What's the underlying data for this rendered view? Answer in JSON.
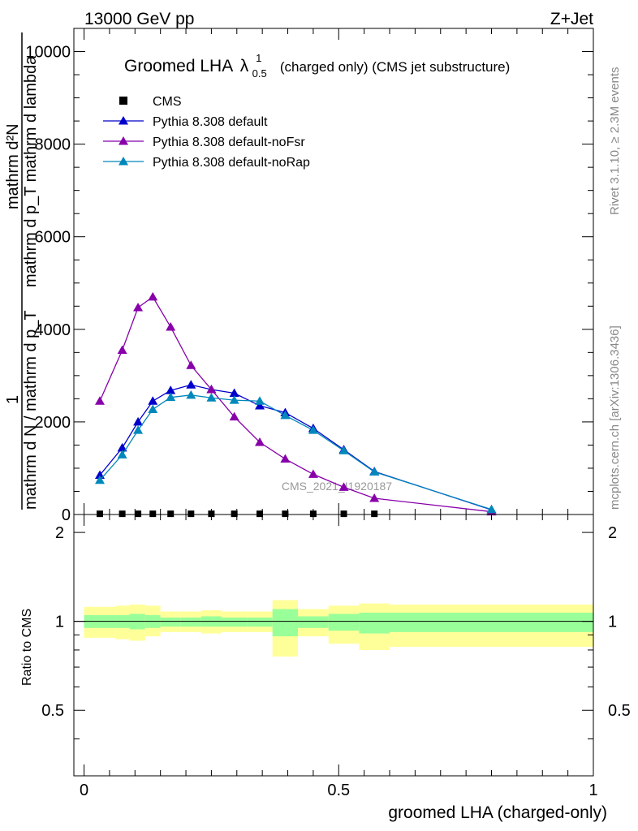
{
  "header": {
    "left": "13000 GeV pp",
    "right": "Z+Jet"
  },
  "side_labels": {
    "rivet": "Rivet 3.1.10, ≥ 2.3M events",
    "mcplots": "mcplots.cern.ch [arXiv:1306.3436]"
  },
  "watermark": "CMS_2021_I1920187",
  "chart_data": [
    {
      "type": "line",
      "title_main": "Groomed LHA",
      "title_lambda": "λ",
      "title_sub": "0.5",
      "title_sup": "1",
      "title_rest": "(charged only) (CMS jet substructure)",
      "ylabel_top": "mathrm d²N",
      "ylabel_mid": "mathrm d p_T mathrm d lambda",
      "ylabel_one": "1",
      "ylabel_bottom": "mathrm d N / mathrm d p_T",
      "ylim": [
        0,
        10500
      ],
      "xlim": [
        -0.02,
        1.0
      ],
      "yticks": [
        0,
        2000,
        4000,
        6000,
        8000,
        10000
      ],
      "ytick_labels": [
        "0",
        "2000",
        "4000",
        "6000",
        "8000",
        "10000"
      ],
      "x": [
        0.031,
        0.075,
        0.106,
        0.135,
        0.17,
        0.21,
        0.25,
        0.295,
        0.345,
        0.395,
        0.45,
        0.51,
        0.57,
        0.8
      ],
      "cms_x": [
        0.031,
        0.075,
        0.106,
        0.135,
        0.17,
        0.21,
        0.25,
        0.295,
        0.345,
        0.395,
        0.45,
        0.51,
        0.57
      ],
      "cms_values": [
        15,
        15,
        15,
        15,
        15,
        15,
        15,
        15,
        15,
        15,
        15,
        15,
        15
      ],
      "series": [
        {
          "name": "CMS",
          "color": "#000000",
          "marker": "square"
        },
        {
          "name": "Pythia 8.308 default",
          "color": "#0000cc",
          "marker": "triangle",
          "values": [
            850,
            1440,
            2000,
            2450,
            2680,
            2800,
            2700,
            2620,
            2350,
            2200,
            1860,
            1400,
            930,
            100
          ]
        },
        {
          "name": "Pythia 8.308 default-noFsr",
          "color": "#8800aa",
          "marker": "triangle",
          "values": [
            2450,
            3550,
            4470,
            4700,
            4050,
            3220,
            2700,
            2110,
            1560,
            1200,
            870,
            590,
            350,
            60
          ]
        },
        {
          "name": "Pythia 8.308 default-noRap",
          "color": "#0088bb",
          "marker": "triangle",
          "values": [
            740,
            1290,
            1820,
            2270,
            2530,
            2580,
            2520,
            2470,
            2450,
            2140,
            1820,
            1380,
            920,
            110
          ]
        }
      ],
      "legend_position": "top-left"
    },
    {
      "type": "area",
      "ylabel": "Ratio to CMS",
      "xlabel": "groomed LHA (charged-only)",
      "ylim": [
        0.3,
        2.3
      ],
      "yticks": [
        0.5,
        1,
        2
      ],
      "ytick_labels": [
        "0.5",
        "1",
        "2"
      ],
      "xticks": [
        0,
        0.5,
        1
      ],
      "xtick_labels": [
        "0",
        "0.5",
        "1"
      ],
      "bins": [
        0.0,
        0.062,
        0.09,
        0.12,
        0.15,
        0.19,
        0.23,
        0.27,
        0.32,
        0.37,
        0.42,
        0.48,
        0.54,
        0.6,
        1.0
      ],
      "band_outer": [
        [
          0.88,
          1.12
        ],
        [
          0.87,
          1.13
        ],
        [
          0.86,
          1.14
        ],
        [
          0.89,
          1.13
        ],
        [
          0.92,
          1.08
        ],
        [
          0.92,
          1.08
        ],
        [
          0.91,
          1.09
        ],
        [
          0.92,
          1.08
        ],
        [
          0.92,
          1.08
        ],
        [
          0.76,
          1.18
        ],
        [
          0.89,
          1.1
        ],
        [
          0.84,
          1.13
        ],
        [
          0.8,
          1.15
        ],
        [
          0.82,
          1.14
        ]
      ],
      "band_inner": [
        [
          0.95,
          1.05
        ],
        [
          0.95,
          1.05
        ],
        [
          0.94,
          1.06
        ],
        [
          0.95,
          1.05
        ],
        [
          0.96,
          1.03
        ],
        [
          0.96,
          1.03
        ],
        [
          0.96,
          1.04
        ],
        [
          0.96,
          1.03
        ],
        [
          0.96,
          1.03
        ],
        [
          0.89,
          1.1
        ],
        [
          0.95,
          1.04
        ],
        [
          0.93,
          1.06
        ],
        [
          0.91,
          1.07
        ],
        [
          0.92,
          1.07
        ]
      ],
      "band_outer_color": "#ffff99",
      "band_inner_color": "#99ff99"
    }
  ]
}
